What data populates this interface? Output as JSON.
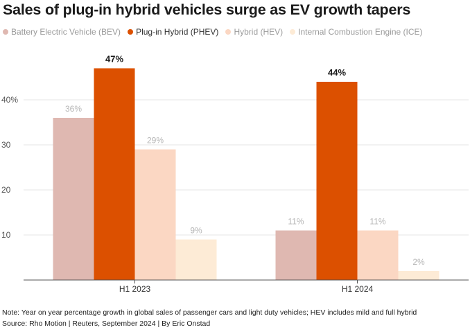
{
  "title": "Sales of plug-in hybrid vehicles surge as EV growth tapers",
  "note": "Note: Year on year percentage growth in global sales of passenger cars and light duty vehicles; HEV includes mild and full hybrid",
  "source": "Source: Rho Motion | Reuters, September 2024 | By Eric Onstad",
  "chart_data": {
    "type": "bar",
    "categories": [
      "H1 2023",
      "H1 2024"
    ],
    "series": [
      {
        "name": "Battery Electric Vehicle (BEV)",
        "values": [
          36,
          11
        ],
        "labels": [
          "36%",
          "11%"
        ],
        "color": "#dfb8b1",
        "label_color": "#b5b5b5",
        "emphasis": false
      },
      {
        "name": "Plug-in Hybrid (PHEV)",
        "values": [
          47,
          44
        ],
        "labels": [
          "47%",
          "44%"
        ],
        "color": "#dc5000",
        "label_color": "#1a1a1a",
        "emphasis": true
      },
      {
        "name": "Hybrid (HEV)",
        "values": [
          29,
          11
        ],
        "labels": [
          "29%",
          "11%"
        ],
        "color": "#fbd7c3",
        "label_color": "#b5b5b5",
        "emphasis": false
      },
      {
        "name": "Internal Combustion Engine (ICE)",
        "values": [
          9,
          2
        ],
        "labels": [
          "9%",
          "2%"
        ],
        "color": "#fdebd6",
        "label_color": "#b5b5b5",
        "emphasis": false
      }
    ],
    "yticks": [
      {
        "value": 10,
        "label": "10"
      },
      {
        "value": 20,
        "label": "20"
      },
      {
        "value": 30,
        "label": "30"
      },
      {
        "value": 40,
        "label": "40%"
      }
    ],
    "ylim": [
      0,
      50
    ],
    "grid": true,
    "legend": "top-left"
  }
}
